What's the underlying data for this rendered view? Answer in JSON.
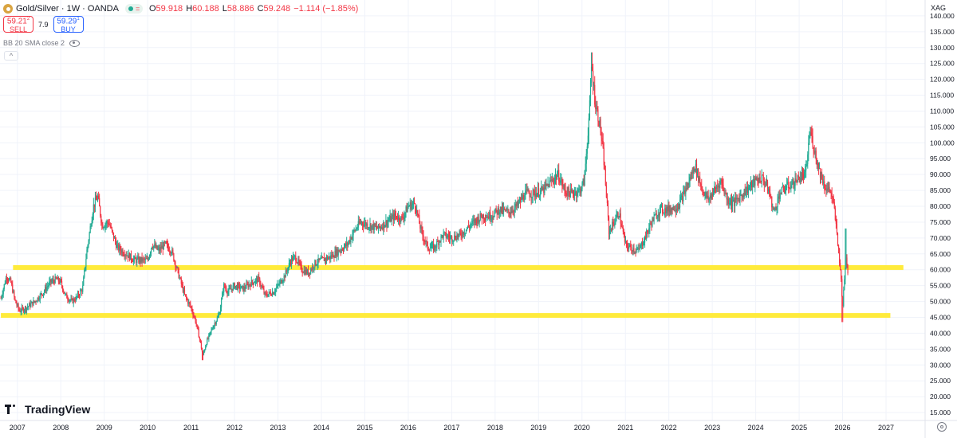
{
  "header": {
    "title": "Gold/Silver · 1W · OANDA",
    "ohlc": [
      {
        "label": "O",
        "value": "59.918"
      },
      {
        "label": "H",
        "value": "60.188"
      },
      {
        "label": "L",
        "value": "58.886"
      },
      {
        "label": "C",
        "value": "59.248"
      },
      {
        "label": "",
        "value": "−1.114 (−1.85%)"
      }
    ]
  },
  "trade": {
    "sell_price": "59.21",
    "sell_sup": "2",
    "sell_label": "SELL",
    "spread": "7.9",
    "buy_price": "59.29",
    "buy_sup": "1",
    "buy_label": "BUY"
  },
  "indicator": {
    "label": "BB 20 SMA close 2"
  },
  "collapse_label": "^",
  "logo": {
    "text": "TradingView"
  },
  "price_axis": {
    "currency": "XAG"
  },
  "colors": {
    "up": "#22ab94",
    "down": "#f23645",
    "level": "#ffeb3b",
    "grid": "#f0f3fa"
  },
  "chart_data": {
    "type": "candlestick",
    "title": "Gold/Silver · 1W · OANDA",
    "ylim": [
      12.5,
      145
    ],
    "xlim": [
      2006.6,
      2027.9
    ],
    "y_ticks": [
      "15.000",
      "20.000",
      "25.000",
      "30.000",
      "35.000",
      "40.000",
      "45.000",
      "50.000",
      "55.000",
      "60.000",
      "65.000",
      "70.000",
      "75.000",
      "80.000",
      "85.000",
      "90.000",
      "95.000",
      "100.000",
      "105.000",
      "110.000",
      "115.000",
      "120.000",
      "125.000",
      "130.000",
      "135.000",
      "140.000"
    ],
    "y_tick_values": [
      15,
      20,
      25,
      30,
      35,
      40,
      45,
      50,
      55,
      60,
      65,
      70,
      75,
      80,
      85,
      90,
      95,
      100,
      105,
      110,
      115,
      120,
      125,
      130,
      135,
      140
    ],
    "x_ticks": [
      "2007",
      "2008",
      "2009",
      "2010",
      "2011",
      "2012",
      "2013",
      "2014",
      "2015",
      "2016",
      "2017",
      "2018",
      "2019",
      "2020",
      "2021",
      "2022",
      "2023",
      "2024",
      "2025",
      "2026",
      "2027"
    ],
    "x_tick_values": [
      2007,
      2008,
      2009,
      2010,
      2011,
      2012,
      2013,
      2014,
      2015,
      2016,
      2017,
      2018,
      2019,
      2020,
      2021,
      2022,
      2023,
      2024,
      2025,
      2026,
      2027
    ],
    "price_path": [
      [
        2006.62,
        51
      ],
      [
        2006.75,
        58
      ],
      [
        2006.85,
        56
      ],
      [
        2006.95,
        50
      ],
      [
        2007.05,
        47
      ],
      [
        2007.2,
        48
      ],
      [
        2007.4,
        50
      ],
      [
        2007.6,
        53
      ],
      [
        2007.75,
        56
      ],
      [
        2007.9,
        57
      ],
      [
        2008.0,
        56
      ],
      [
        2008.1,
        52
      ],
      [
        2008.25,
        50
      ],
      [
        2008.35,
        51
      ],
      [
        2008.5,
        54
      ],
      [
        2008.6,
        66
      ],
      [
        2008.75,
        80
      ],
      [
        2008.85,
        83
      ],
      [
        2008.95,
        74
      ],
      [
        2009.1,
        75
      ],
      [
        2009.3,
        67
      ],
      [
        2009.5,
        65
      ],
      [
        2009.7,
        63
      ],
      [
        2009.9,
        63
      ],
      [
        2010.0,
        63
      ],
      [
        2010.1,
        68
      ],
      [
        2010.25,
        66
      ],
      [
        2010.4,
        68
      ],
      [
        2010.55,
        66
      ],
      [
        2010.7,
        59
      ],
      [
        2010.85,
        52
      ],
      [
        2011.0,
        48
      ],
      [
        2011.1,
        44
      ],
      [
        2011.2,
        38
      ],
      [
        2011.27,
        33
      ],
      [
        2011.35,
        37
      ],
      [
        2011.5,
        42
      ],
      [
        2011.65,
        46
      ],
      [
        2011.75,
        55
      ],
      [
        2011.85,
        53
      ],
      [
        2012.0,
        55
      ],
      [
        2012.2,
        54
      ],
      [
        2012.4,
        56
      ],
      [
        2012.55,
        57
      ],
      [
        2012.7,
        52
      ],
      [
        2012.9,
        53
      ],
      [
        2013.0,
        55
      ],
      [
        2013.15,
        58
      ],
      [
        2013.3,
        63
      ],
      [
        2013.4,
        64
      ],
      [
        2013.55,
        60
      ],
      [
        2013.7,
        59
      ],
      [
        2013.85,
        62
      ],
      [
        2014.0,
        63
      ],
      [
        2014.2,
        64
      ],
      [
        2014.4,
        66
      ],
      [
        2014.6,
        68
      ],
      [
        2014.75,
        72
      ],
      [
        2014.9,
        75
      ],
      [
        2015.1,
        74
      ],
      [
        2015.3,
        73
      ],
      [
        2015.5,
        75
      ],
      [
        2015.7,
        77
      ],
      [
        2015.85,
        76
      ],
      [
        2016.0,
        80
      ],
      [
        2016.15,
        81
      ],
      [
        2016.3,
        72
      ],
      [
        2016.45,
        67
      ],
      [
        2016.6,
        67
      ],
      [
        2016.8,
        71
      ],
      [
        2017.0,
        70
      ],
      [
        2017.2,
        71
      ],
      [
        2017.35,
        73
      ],
      [
        2017.5,
        75
      ],
      [
        2017.7,
        77
      ],
      [
        2017.9,
        77
      ],
      [
        2018.1,
        79
      ],
      [
        2018.3,
        78
      ],
      [
        2018.5,
        80
      ],
      [
        2018.7,
        84
      ],
      [
        2018.9,
        84
      ],
      [
        2019.1,
        85
      ],
      [
        2019.3,
        88
      ],
      [
        2019.45,
        90
      ],
      [
        2019.6,
        85
      ],
      [
        2019.75,
        84
      ],
      [
        2019.95,
        85
      ],
      [
        2020.05,
        88
      ],
      [
        2020.12,
        100
      ],
      [
        2020.18,
        112
      ],
      [
        2020.22,
        125
      ],
      [
        2020.3,
        113
      ],
      [
        2020.42,
        105
      ],
      [
        2020.5,
        95
      ],
      [
        2020.58,
        80
      ],
      [
        2020.62,
        72
      ],
      [
        2020.7,
        74
      ],
      [
        2020.85,
        78
      ],
      [
        2021.0,
        68
      ],
      [
        2021.1,
        67
      ],
      [
        2021.3,
        66
      ],
      [
        2021.45,
        70
      ],
      [
        2021.6,
        75
      ],
      [
        2021.8,
        79
      ],
      [
        2022.0,
        79
      ],
      [
        2022.2,
        80
      ],
      [
        2022.35,
        84
      ],
      [
        2022.5,
        89
      ],
      [
        2022.6,
        93
      ],
      [
        2022.75,
        86
      ],
      [
        2022.9,
        82
      ],
      [
        2023.05,
        85
      ],
      [
        2023.2,
        88
      ],
      [
        2023.35,
        82
      ],
      [
        2023.5,
        81
      ],
      [
        2023.7,
        84
      ],
      [
        2023.85,
        86
      ],
      [
        2024.0,
        88
      ],
      [
        2024.15,
        89
      ],
      [
        2024.3,
        85
      ],
      [
        2024.42,
        78
      ],
      [
        2024.55,
        84
      ],
      [
        2024.7,
        86
      ],
      [
        2024.85,
        87
      ],
      [
        2025.0,
        89
      ],
      [
        2025.15,
        90
      ],
      [
        2025.25,
        104
      ],
      [
        2025.33,
        99
      ],
      [
        2025.45,
        92
      ],
      [
        2025.6,
        86
      ],
      [
        2025.72,
        85
      ],
      [
        2025.8,
        80
      ],
      [
        2025.88,
        70
      ],
      [
        2025.95,
        60
      ],
      [
        2026.0,
        48
      ],
      [
        2026.04,
        57
      ],
      [
        2026.08,
        65
      ],
      [
        2026.12,
        59.25
      ]
    ],
    "highest_high": 128.5,
    "lowest_low": 31.5,
    "horizontal_levels": [
      {
        "x_from": 2006.9,
        "x_to": 2027.4,
        "y": 60.7
      },
      {
        "x_from": 2006.62,
        "x_to": 2027.1,
        "y": 45.6
      }
    ]
  }
}
